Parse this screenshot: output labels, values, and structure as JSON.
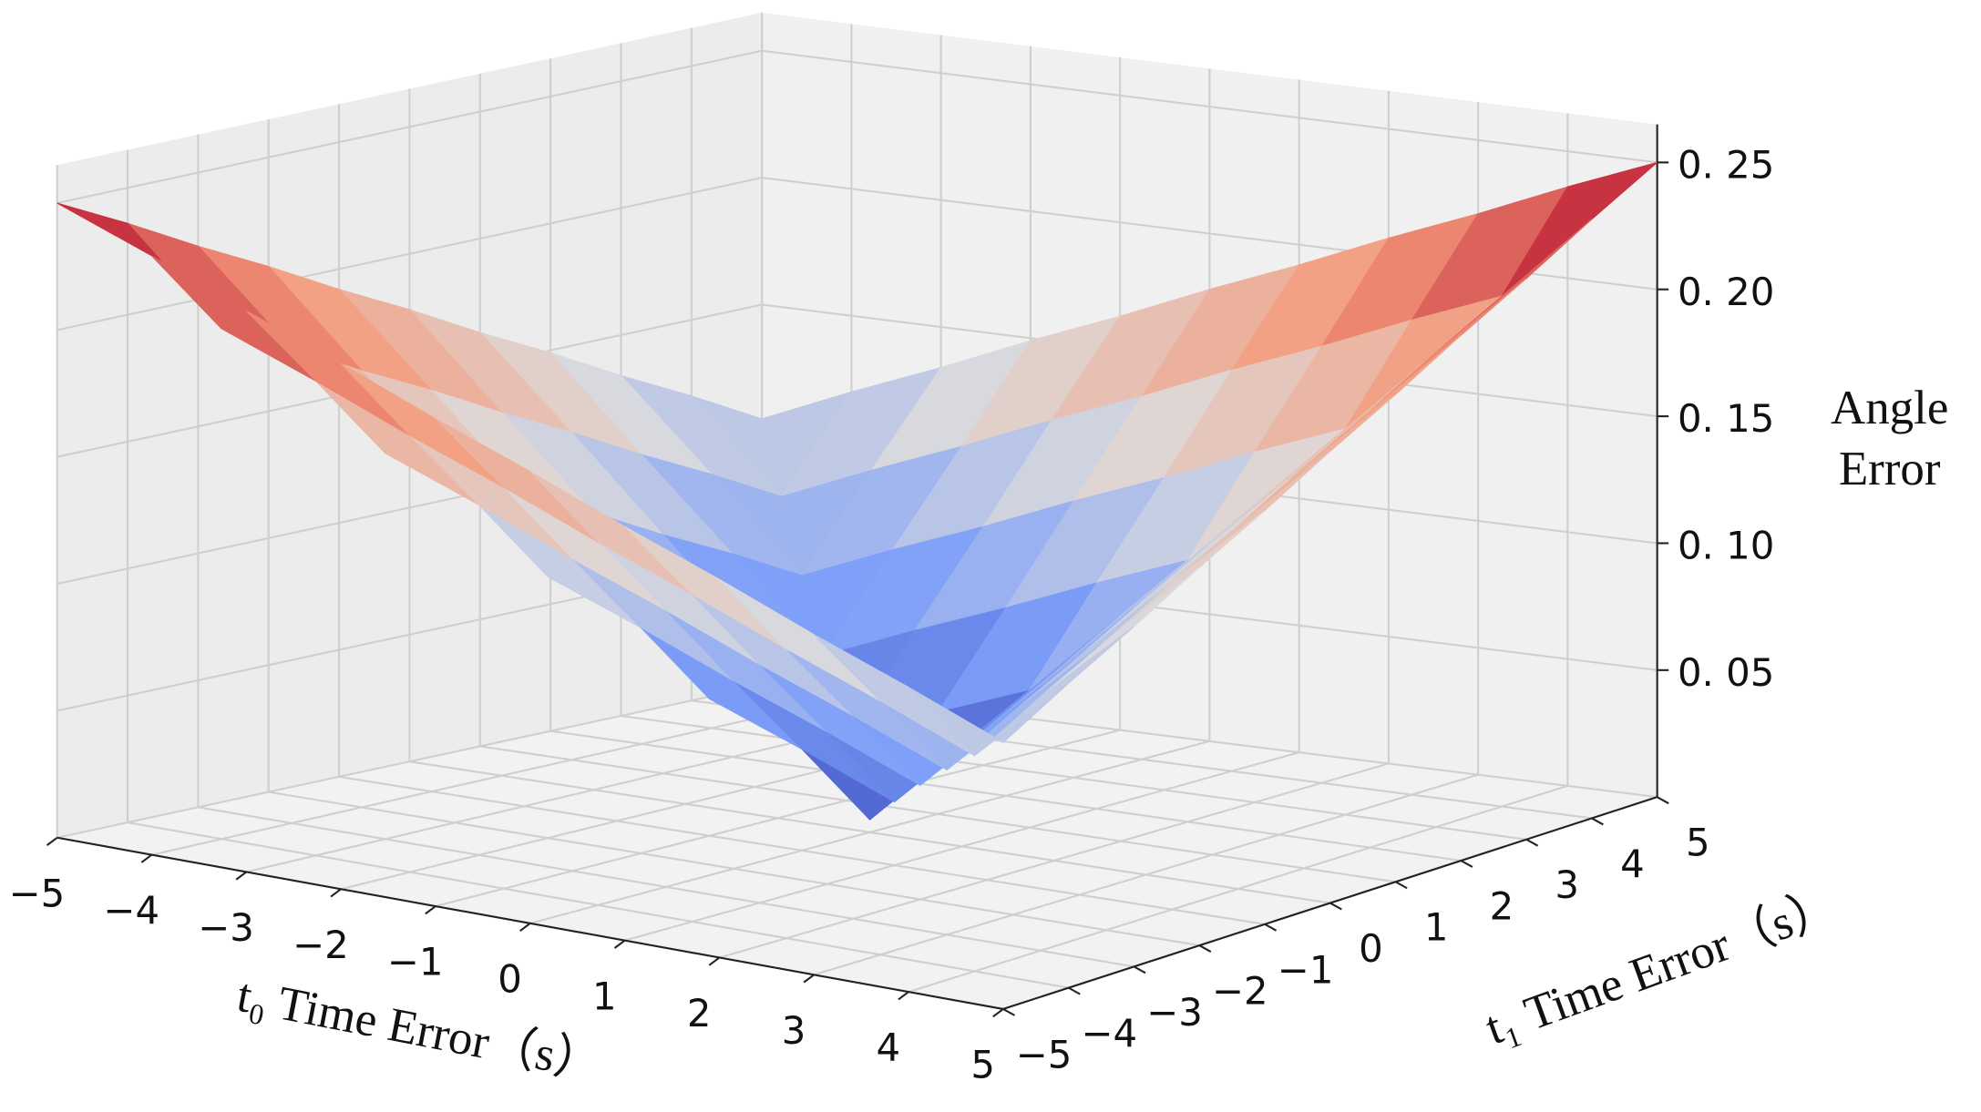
{
  "chart_data": {
    "type": "surface",
    "xlabel": "t₀ Time Error（s）",
    "ylabel": "t₁ Time Error（s）",
    "zlabel": [
      "Angle",
      "Error"
    ],
    "x": [
      -5,
      -4,
      -3,
      -2,
      -1,
      0,
      1,
      2,
      3,
      4,
      5
    ],
    "y": [
      -5,
      -4,
      -3,
      -2,
      -1,
      0,
      1,
      2,
      3,
      4,
      5
    ],
    "z": [
      [
        0.25,
        0.236,
        0.221,
        0.207,
        0.192,
        0.178,
        0.163,
        0.149,
        0.134,
        0.12,
        0.105
      ],
      [
        0.236,
        0.201,
        0.187,
        0.172,
        0.158,
        0.143,
        0.129,
        0.114,
        0.1,
        0.085,
        0.12
      ],
      [
        0.221,
        0.187,
        0.152,
        0.138,
        0.123,
        0.109,
        0.094,
        0.08,
        0.065,
        0.1,
        0.134
      ],
      [
        0.207,
        0.172,
        0.138,
        0.103,
        0.089,
        0.074,
        0.06,
        0.045,
        0.08,
        0.114,
        0.149
      ],
      [
        0.192,
        0.158,
        0.123,
        0.089,
        0.054,
        0.04,
        0.025,
        0.06,
        0.094,
        0.129,
        0.163
      ],
      [
        0.178,
        0.143,
        0.109,
        0.074,
        0.04,
        0.005,
        0.04,
        0.074,
        0.109,
        0.143,
        0.178
      ],
      [
        0.163,
        0.129,
        0.094,
        0.06,
        0.025,
        0.04,
        0.054,
        0.089,
        0.123,
        0.158,
        0.192
      ],
      [
        0.149,
        0.114,
        0.08,
        0.045,
        0.06,
        0.074,
        0.089,
        0.103,
        0.138,
        0.172,
        0.207
      ],
      [
        0.134,
        0.1,
        0.065,
        0.08,
        0.094,
        0.109,
        0.123,
        0.138,
        0.152,
        0.187,
        0.221
      ],
      [
        0.12,
        0.085,
        0.1,
        0.114,
        0.129,
        0.143,
        0.158,
        0.172,
        0.187,
        0.201,
        0.236
      ],
      [
        0.105,
        0.12,
        0.134,
        0.149,
        0.163,
        0.178,
        0.192,
        0.207,
        0.221,
        0.236,
        0.25
      ]
    ],
    "colormap": "coolwarm",
    "xlim": [
      -5,
      5
    ],
    "ylim": [
      -5,
      5
    ],
    "zlim": [
      0,
      0.265
    ],
    "xticks": [
      {
        "value": -5,
        "label": "−5"
      },
      {
        "value": -4,
        "label": "−4"
      },
      {
        "value": -3,
        "label": "−3"
      },
      {
        "value": -2,
        "label": "−2"
      },
      {
        "value": -1,
        "label": "−1"
      },
      0,
      1,
      2,
      3,
      4,
      5
    ],
    "yticks": [
      {
        "value": -5,
        "label": "−5"
      },
      {
        "value": -4,
        "label": "−4"
      },
      {
        "value": -3,
        "label": "−3"
      },
      {
        "value": -2,
        "label": "−2"
      },
      {
        "value": -1,
        "label": "−1"
      },
      0,
      1,
      2,
      3,
      4,
      5
    ],
    "zticks": [
      {
        "value": 0.05,
        "label": "0. 05"
      },
      {
        "value": 0.1,
        "label": "0. 10"
      },
      {
        "value": 0.15,
        "label": "0. 15"
      },
      {
        "value": 0.2,
        "label": "0. 20"
      },
      {
        "value": 0.25,
        "label": "0. 25"
      }
    ],
    "grid": true
  }
}
